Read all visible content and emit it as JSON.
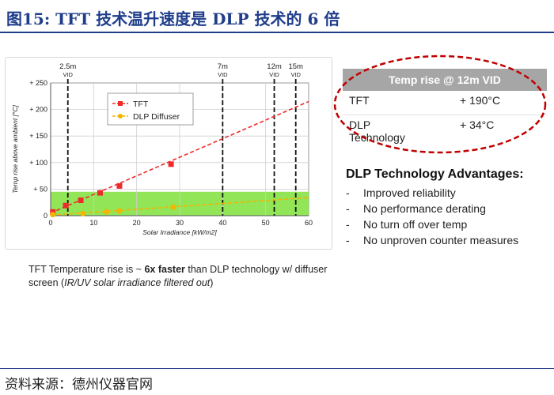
{
  "figure_title": "图15:  TFT 技术温升速度是 DLP 技术的 6 倍",
  "chart_data": {
    "type": "scatter",
    "xlabel": "Solar Irradiance [kW/m2]",
    "ylabel": "Temp rise above ambient [°C]",
    "xlim": [
      0,
      60
    ],
    "ylim": [
      0,
      250
    ],
    "x_ticks": [
      "0",
      "10",
      "20",
      "30",
      "40",
      "50",
      "60"
    ],
    "y_ticks": [
      "0",
      "+ 50",
      "+ 100",
      "+ 150",
      "+ 200",
      "+ 250"
    ],
    "green_band": [
      0,
      45
    ],
    "grid": true,
    "legend_position": "top-left",
    "vid_markers": [
      {
        "x": 4,
        "line1": "2.5m",
        "line2": "VID"
      },
      {
        "x": 40,
        "line1": "7m",
        "line2": "VID"
      },
      {
        "x": 52,
        "line1": "12m",
        "line2": "VID"
      },
      {
        "x": 57,
        "line1": "15m",
        "line2": "VID"
      }
    ],
    "series": [
      {
        "name": "TFT",
        "color": "#ee2b2b",
        "points": [
          [
            0.5,
            7
          ],
          [
            3.5,
            19
          ],
          [
            7,
            29
          ],
          [
            11.5,
            43
          ],
          [
            16,
            56
          ],
          [
            28,
            97
          ]
        ],
        "trend": [
          [
            0,
            5
          ],
          [
            60,
            215
          ]
        ]
      },
      {
        "name": "DLP Diffuser",
        "color": "#f5b400",
        "points": [
          [
            0.5,
            2
          ],
          [
            7.5,
            4
          ],
          [
            13,
            7
          ],
          [
            16,
            9
          ],
          [
            28.5,
            16
          ]
        ],
        "trend": [
          [
            0,
            1
          ],
          [
            60,
            34
          ]
        ]
      }
    ]
  },
  "note": {
    "part1": "TFT Temperature rise is ~ ",
    "bold": "6x faster",
    "part2": " than DLP technology w/ diffuser screen (",
    "italic": "IR/UV solar irradiance filtered out",
    "part3": ")"
  },
  "table": {
    "header": "Temp rise @ 12m VID",
    "rows": [
      {
        "label": "TFT",
        "value": "+ 190°C"
      },
      {
        "label": "DLP Technology",
        "value": "+ 34°C"
      }
    ]
  },
  "advantages": {
    "heading": "DLP Technology Advantages:",
    "dash": "-",
    "items": [
      "Improved reliability",
      "No performance derating",
      "No turn off over temp",
      "No unproven counter measures"
    ]
  },
  "source": "资料来源：德州仪器官网",
  "colors": {
    "highlight_oval": "#c00000",
    "band": "#7ee03a",
    "title": "#1f3d8a"
  }
}
